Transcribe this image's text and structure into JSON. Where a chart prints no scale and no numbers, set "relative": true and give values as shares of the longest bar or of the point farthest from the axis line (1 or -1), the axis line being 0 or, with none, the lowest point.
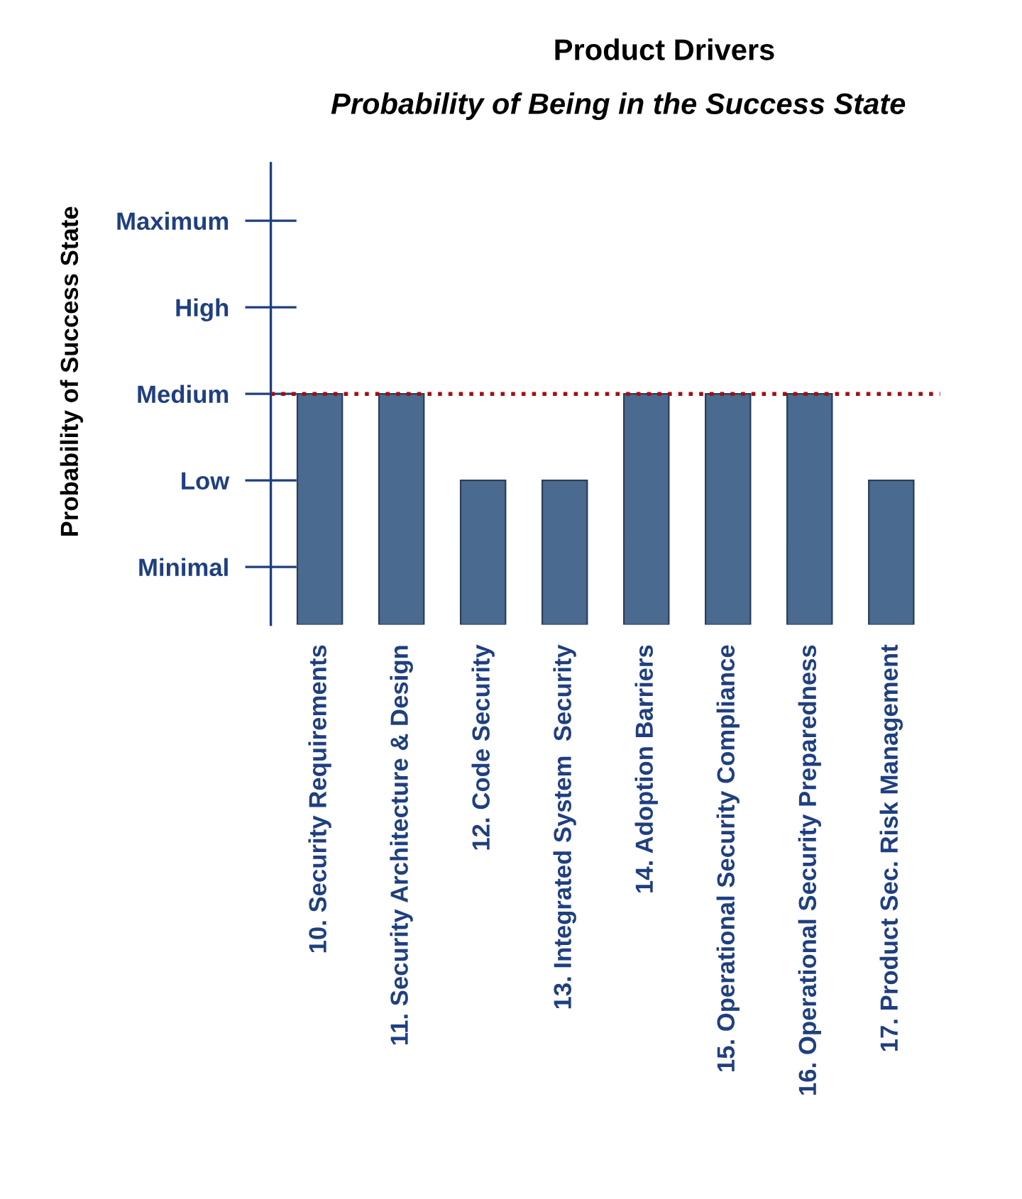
{
  "chart_data": {
    "type": "bar",
    "title": "Product Drivers",
    "subtitle": "Probability of Being in the Success State",
    "categories": [
      "10. Security Requirements",
      "11. Security Architecture & Design",
      "12. Code Security",
      "13. Integrated System  Security",
      "14. Adoption Barriers",
      "15. Operational Security Compliance",
      "16. Operational Security Preparedness",
      "17. Product Sec. Risk Management"
    ],
    "values": [
      1,
      1,
      0.625,
      0.625,
      1,
      1,
      1,
      0.625
    ],
    "color": "#4a6a8f",
    "relative": true,
    "annotations": [
      "Probability of Success State",
      "Minimal",
      "Low",
      "Medium",
      "High",
      "Maximum"
    ],
    "ref_lines": [
      {
        "axis": "y",
        "value": 1,
        "label": null,
        "color": "#a01010",
        "line_style": "dotted"
      }
    ],
    "grid": false,
    "legend": false
  }
}
